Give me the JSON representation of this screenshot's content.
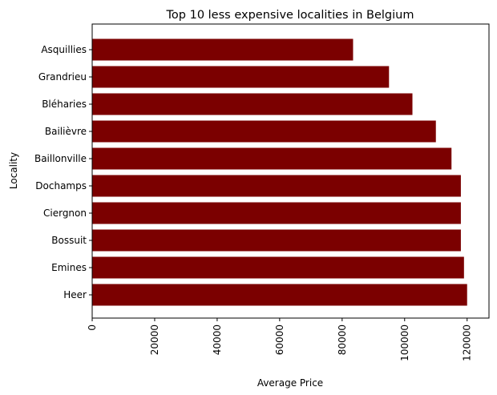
{
  "chart_data": {
    "type": "bar",
    "orientation": "horizontal",
    "title": "Top 10 less expensive localities in Belgium",
    "xlabel": "Average Price",
    "ylabel": "Locality",
    "categories": [
      "Asquillies",
      "Grandrieu",
      "Bléharies",
      "Bailièvre",
      "Baillonville",
      "Dochamps",
      "Ciergnon",
      "Bossuit",
      "Emines",
      "Heer"
    ],
    "values": [
      83500,
      95000,
      102500,
      110000,
      115000,
      118000,
      118000,
      118000,
      119000,
      120000
    ],
    "xlim": [
      0,
      127000
    ],
    "xticks": [
      0,
      20000,
      40000,
      60000,
      80000,
      100000,
      120000
    ],
    "xtick_labels": [
      "0",
      "20000",
      "40000",
      "60000",
      "80000",
      "100000",
      "120000"
    ],
    "xtick_rotation": "vertical",
    "grid": false,
    "legend": "none",
    "bar_color": "#7b0000"
  }
}
